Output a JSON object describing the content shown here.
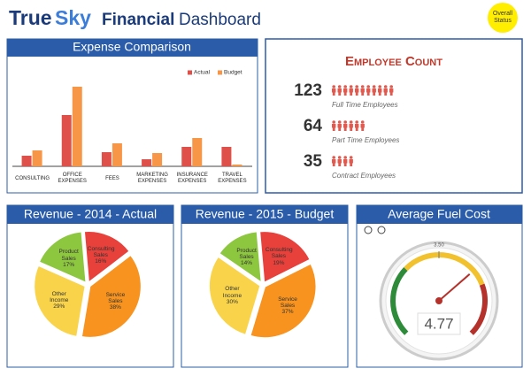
{
  "header": {
    "brand_dark": "True",
    "brand_light": "Sky",
    "title_bold": "Financial",
    "title": "Dashboard",
    "status": "Overall Status"
  },
  "chart_data": [
    {
      "type": "bar",
      "title": "Expense Comparison",
      "categories": [
        "CONSULTING",
        "OFFICE EXPENSES",
        "FEES",
        "MARKETING EXPENSES",
        "INSURANCE EXPENSES",
        "TRAVEL EXPENSES"
      ],
      "series": [
        {
          "name": "Actual",
          "color": "#e0504a",
          "values": [
            12,
            58,
            16,
            8,
            22,
            22
          ]
        },
        {
          "name": "Budget",
          "color": "#f79646",
          "values": [
            18,
            90,
            26,
            15,
            32,
            2
          ]
        }
      ],
      "ylim": [
        0,
        100
      ],
      "legend": "top-right"
    },
    {
      "type": "pie",
      "title": "Revenue - 2014 - Actual",
      "categories": [
        "Consulting Sales",
        "Service Sales",
        "Other Income",
        "Product Sales"
      ],
      "values": [
        16,
        38,
        29,
        17
      ],
      "value_labels": [
        "16%",
        "38%",
        "29%",
        "17%"
      ],
      "colors": [
        "#e8403a",
        "#f7931e",
        "#f9d44a",
        "#8dc63f"
      ]
    },
    {
      "type": "pie",
      "title": "Revenue - 2015 - Budget",
      "categories": [
        "Consulting Sales",
        "Service Sales",
        "Other Income",
        "Product Sales"
      ],
      "values": [
        19,
        37,
        30,
        14
      ],
      "value_labels": [
        "19%",
        "37%",
        "30%",
        "14%"
      ],
      "colors": [
        "#e8403a",
        "#f7931e",
        "#f9d44a",
        "#8dc63f"
      ]
    },
    {
      "type": "gauge",
      "title": "Average Fuel Cost",
      "value": 4.77,
      "ylim": [
        0,
        7
      ],
      "yticks": [
        {
          "value": 3.5,
          "label": "3.50"
        }
      ],
      "bands": [
        {
          "from": 0,
          "to": 2.3,
          "color": "#2e8b3a"
        },
        {
          "from": 2.3,
          "to": 5.3,
          "color": "#f2c12e"
        },
        {
          "from": 5.3,
          "to": 7,
          "color": "#b5322c"
        }
      ]
    }
  ],
  "employees": {
    "title": "Employee Count",
    "rows": [
      {
        "count": 123,
        "label": "Full Time Employees"
      },
      {
        "count": 64,
        "label": "Part Time Employees"
      },
      {
        "count": 35,
        "label": "Contract Employees"
      }
    ]
  }
}
